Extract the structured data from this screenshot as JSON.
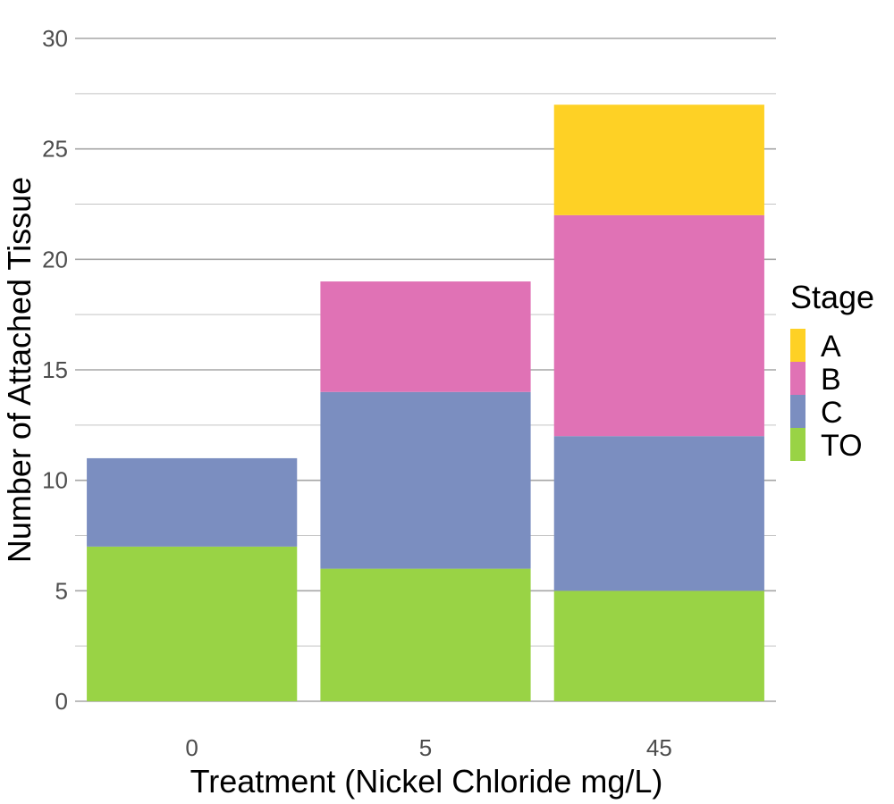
{
  "chart_data": {
    "type": "bar",
    "stacked": true,
    "title": "",
    "xlabel": "Treatment (Nickel Chloride mg/L)",
    "ylabel": "Number of Attached Tissue",
    "categories": [
      "0",
      "5",
      "45"
    ],
    "ylim": [
      0,
      30
    ],
    "y_ticks": [
      0,
      5,
      10,
      15,
      20,
      25,
      30
    ],
    "grid": "horizontal",
    "legend": {
      "title": "Stage",
      "position": "right",
      "entries": [
        "A",
        "B",
        "C",
        "TO"
      ]
    },
    "series": [
      {
        "name": "TO",
        "color": "#99d345",
        "values": [
          7,
          6,
          5
        ]
      },
      {
        "name": "C",
        "color": "#7b8ec0",
        "values": [
          4,
          8,
          7
        ]
      },
      {
        "name": "B",
        "color": "#e072b5",
        "values": [
          0,
          5,
          10
        ]
      },
      {
        "name": "A",
        "color": "#fed125",
        "values": [
          0,
          0,
          5
        ]
      }
    ]
  }
}
